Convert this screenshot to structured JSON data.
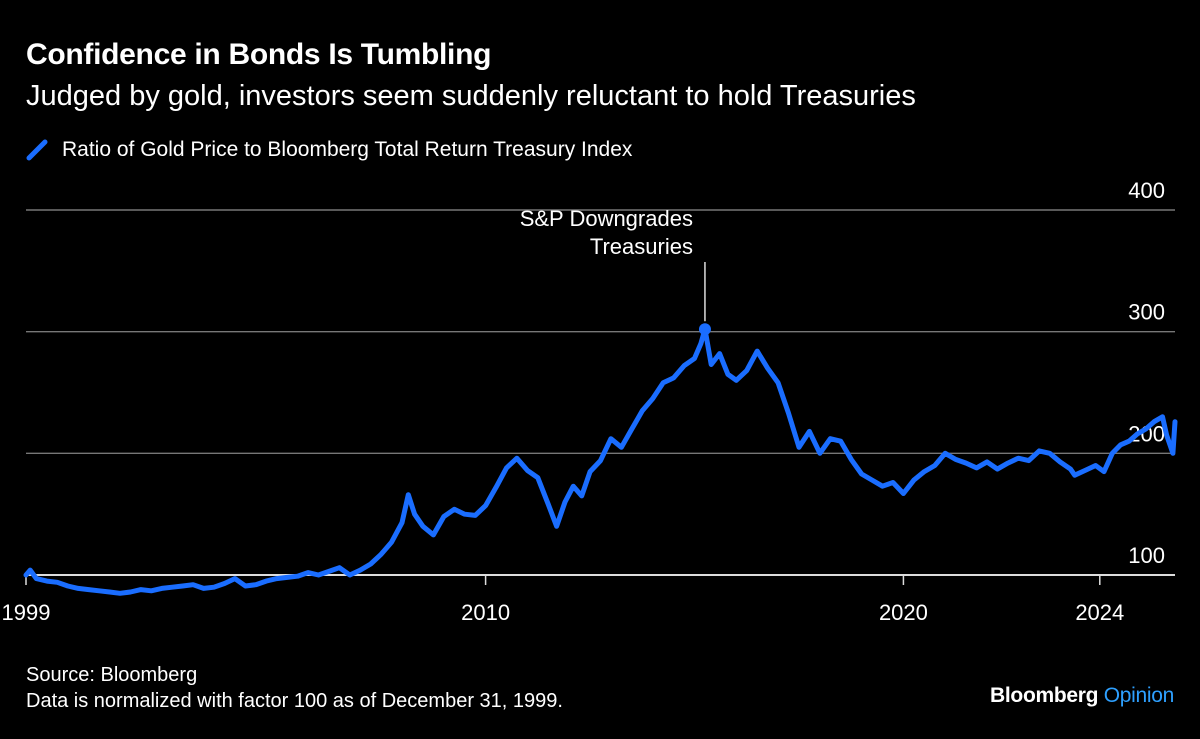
{
  "header": {
    "title": "Confidence in Bonds Is Tumbling",
    "subtitle": "Judged by gold, investors seem suddenly reluctant to hold Treasuries"
  },
  "footer": {
    "source": "Source: Bloomberg",
    "note": "Data is normalized with factor 100 as of December 31, 1999."
  },
  "brand": {
    "name": "Bloomberg",
    "suffix": "Opinion"
  },
  "colors": {
    "background": "#000000",
    "line": "#1a6dff",
    "grid": "#777777",
    "text": "#ffffff",
    "brand_accent": "#2ea0ff"
  },
  "chart_data": {
    "type": "line",
    "title": "Confidence in Bonds Is Tumbling",
    "subtitle": "Judged by gold, investors seem suddenly reluctant to hold Treasuries",
    "xlabel": "",
    "ylabel": "",
    "xlim": [
      1999.0,
      2026.5
    ],
    "ylim": [
      100,
      400
    ],
    "x_ticks": [
      {
        "value": 1999.0,
        "label": "1999"
      },
      {
        "value": 2010.0,
        "label": "2010"
      },
      {
        "value": 2020.0,
        "label": "2020"
      },
      {
        "value": 2024.7,
        "label": "2024"
      }
    ],
    "y_ticks": [
      100,
      200,
      300,
      400
    ],
    "grid": "horizontal",
    "legend_position": "top-left",
    "series": [
      {
        "name": "Ratio of Gold Price to Bloomberg Total Return Treasury Index",
        "color": "#1a6dff",
        "points": [
          [
            1999.0,
            100
          ],
          [
            1999.1,
            104
          ],
          [
            1999.25,
            97
          ],
          [
            1999.5,
            95
          ],
          [
            1999.75,
            94
          ],
          [
            2000.0,
            91
          ],
          [
            2000.25,
            89
          ],
          [
            2000.5,
            88
          ],
          [
            2000.75,
            87
          ],
          [
            2001.0,
            86
          ],
          [
            2001.25,
            85
          ],
          [
            2001.5,
            86
          ],
          [
            2001.75,
            88
          ],
          [
            2002.0,
            87
          ],
          [
            2002.25,
            89
          ],
          [
            2002.5,
            90
          ],
          [
            2002.75,
            91
          ],
          [
            2003.0,
            92
          ],
          [
            2003.25,
            89
          ],
          [
            2003.5,
            90
          ],
          [
            2003.75,
            93
          ],
          [
            2004.0,
            97
          ],
          [
            2004.25,
            91
          ],
          [
            2004.5,
            92
          ],
          [
            2004.75,
            95
          ],
          [
            2005.0,
            97
          ],
          [
            2005.25,
            98
          ],
          [
            2005.5,
            99
          ],
          [
            2005.75,
            102
          ],
          [
            2006.0,
            100
          ],
          [
            2006.25,
            103
          ],
          [
            2006.5,
            106
          ],
          [
            2006.75,
            100
          ],
          [
            2007.0,
            104
          ],
          [
            2007.25,
            109
          ],
          [
            2007.5,
            117
          ],
          [
            2007.75,
            127
          ],
          [
            2008.0,
            143
          ],
          [
            2008.15,
            166
          ],
          [
            2008.3,
            150
          ],
          [
            2008.5,
            140
          ],
          [
            2008.75,
            133
          ],
          [
            2009.0,
            148
          ],
          [
            2009.25,
            154
          ],
          [
            2009.5,
            150
          ],
          [
            2009.75,
            149
          ],
          [
            2010.0,
            157
          ],
          [
            2010.25,
            172
          ],
          [
            2010.5,
            188
          ],
          [
            2010.75,
            196
          ],
          [
            2011.0,
            186
          ],
          [
            2011.25,
            180
          ],
          [
            2011.5,
            158
          ],
          [
            2011.7,
            140
          ],
          [
            2011.9,
            160
          ],
          [
            2012.1,
            173
          ],
          [
            2012.3,
            165
          ],
          [
            2012.5,
            185
          ],
          [
            2012.75,
            194
          ],
          [
            2013.0,
            212
          ],
          [
            2013.25,
            205
          ],
          [
            2013.5,
            220
          ],
          [
            2013.75,
            235
          ],
          [
            2014.0,
            245
          ],
          [
            2014.25,
            258
          ],
          [
            2014.5,
            262
          ],
          [
            2014.75,
            272
          ],
          [
            2015.0,
            278
          ],
          [
            2015.15,
            290
          ],
          [
            2015.25,
            302
          ],
          [
            2015.4,
            273
          ],
          [
            2015.6,
            282
          ],
          [
            2015.8,
            265
          ],
          [
            2016.0,
            260
          ],
          [
            2016.25,
            268
          ],
          [
            2016.5,
            284
          ],
          [
            2016.75,
            270
          ],
          [
            2017.0,
            258
          ],
          [
            2017.25,
            233
          ],
          [
            2017.5,
            205
          ],
          [
            2017.75,
            218
          ],
          [
            2018.0,
            200
          ],
          [
            2018.25,
            212
          ],
          [
            2018.5,
            210
          ],
          [
            2018.75,
            195
          ],
          [
            2019.0,
            183
          ],
          [
            2019.25,
            178
          ],
          [
            2019.5,
            173
          ],
          [
            2019.75,
            176
          ],
          [
            2020.0,
            167
          ],
          [
            2020.25,
            178
          ],
          [
            2020.5,
            185
          ],
          [
            2020.75,
            190
          ],
          [
            2021.0,
            200
          ],
          [
            2021.25,
            195
          ],
          [
            2021.5,
            192
          ],
          [
            2021.75,
            188
          ],
          [
            2022.0,
            193
          ],
          [
            2022.25,
            187
          ],
          [
            2022.5,
            192
          ],
          [
            2022.75,
            196
          ],
          [
            2023.0,
            194
          ],
          [
            2023.25,
            202
          ],
          [
            2023.5,
            200
          ],
          [
            2023.75,
            193
          ],
          [
            2024.0,
            187
          ],
          [
            2024.1,
            182
          ],
          [
            2024.35,
            186
          ],
          [
            2024.6,
            190
          ],
          [
            2024.8,
            185
          ],
          [
            2025.0,
            200
          ],
          [
            2025.2,
            207
          ],
          [
            2025.4,
            210
          ],
          [
            2025.6,
            216
          ],
          [
            2025.8,
            220
          ],
          [
            2026.0,
            226
          ],
          [
            2026.2,
            230
          ],
          [
            2026.3,
            215
          ],
          [
            2026.45,
            200
          ],
          [
            2026.5,
            226
          ]
        ]
      }
    ],
    "annotations": [
      {
        "text": "S&P Downgrades Treasuries",
        "lines": [
          "S&P Downgrades",
          "Treasuries"
        ],
        "x": 2015.25,
        "y": 302
      }
    ]
  }
}
